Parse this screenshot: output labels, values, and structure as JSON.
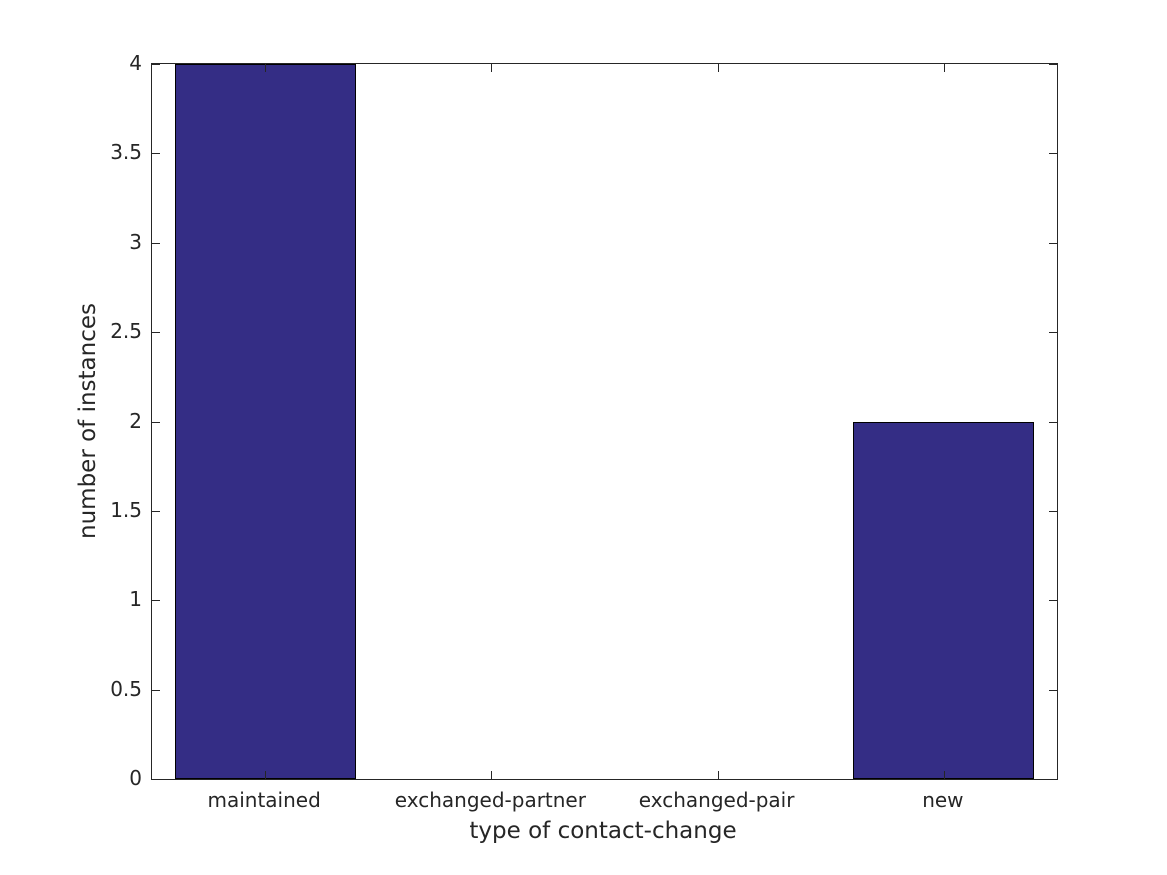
{
  "chart_data": {
    "type": "bar",
    "categories": [
      "maintained",
      "exchanged-partner",
      "exchanged-pair",
      "new"
    ],
    "values": [
      4,
      0,
      0,
      2
    ],
    "xlabel": "type of contact-change",
    "ylabel": "number of instances",
    "ylim": [
      0,
      4
    ],
    "yticks": [
      0,
      0.5,
      1,
      1.5,
      2,
      2.5,
      3,
      3.5,
      4
    ],
    "ytick_labels": [
      "0",
      "0.5",
      "1",
      "1.5",
      "2",
      "2.5",
      "3",
      "3.5",
      "4"
    ],
    "bar_width_fraction": 0.8,
    "bar_color": "#342d85",
    "bar_edge_color": "#000000",
    "axis_color": "#262626",
    "text_color": "#262626",
    "background_color": "#ffffff",
    "grid": false,
    "legend": "none"
  }
}
